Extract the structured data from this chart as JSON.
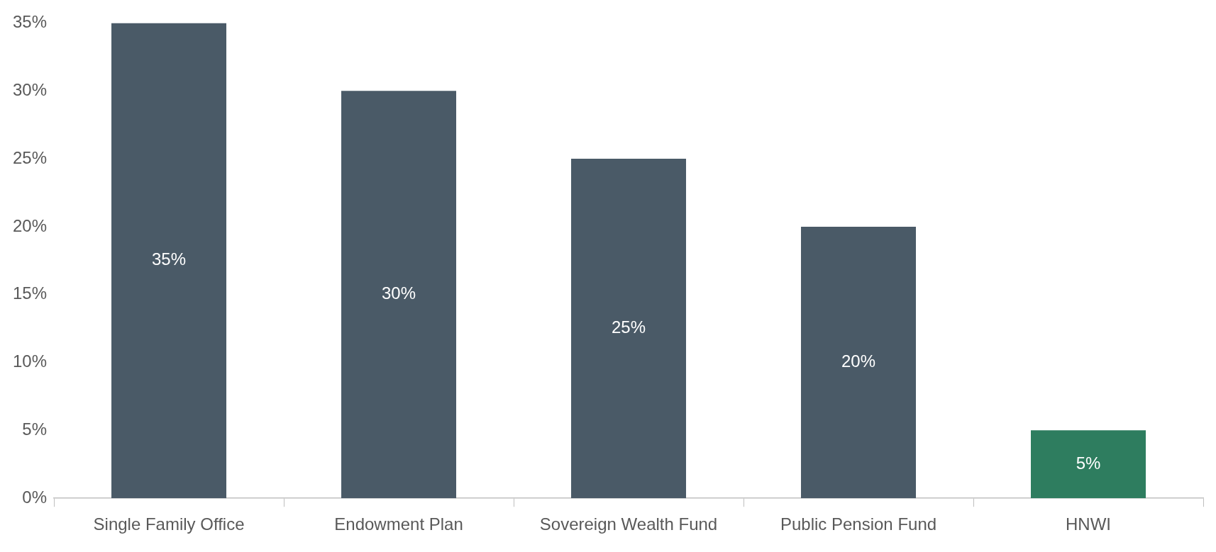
{
  "chart_data": {
    "type": "bar",
    "categories": [
      "Single Family Office",
      "Endowment Plan",
      "Sovereign Wealth Fund",
      "Public Pension Fund",
      "HNWI"
    ],
    "values": [
      35,
      30,
      25,
      20,
      5
    ],
    "colors": [
      "#4a5a67",
      "#4a5a67",
      "#4a5a67",
      "#4a5a67",
      "#2e7d5f"
    ],
    "value_labels": [
      "35%",
      "30%",
      "25%",
      "20%",
      "5%"
    ],
    "ylim": [
      0,
      35
    ],
    "yticks": [
      {
        "value": 0,
        "label": "0%"
      },
      {
        "value": 5,
        "label": "5%"
      },
      {
        "value": 10,
        "label": "10%"
      },
      {
        "value": 15,
        "label": "15%"
      },
      {
        "value": 20,
        "label": "20%"
      },
      {
        "value": 25,
        "label": "25%"
      },
      {
        "value": 30,
        "label": "30%"
      },
      {
        "value": 35,
        "label": "35%"
      }
    ],
    "grid": false,
    "legend": false
  }
}
